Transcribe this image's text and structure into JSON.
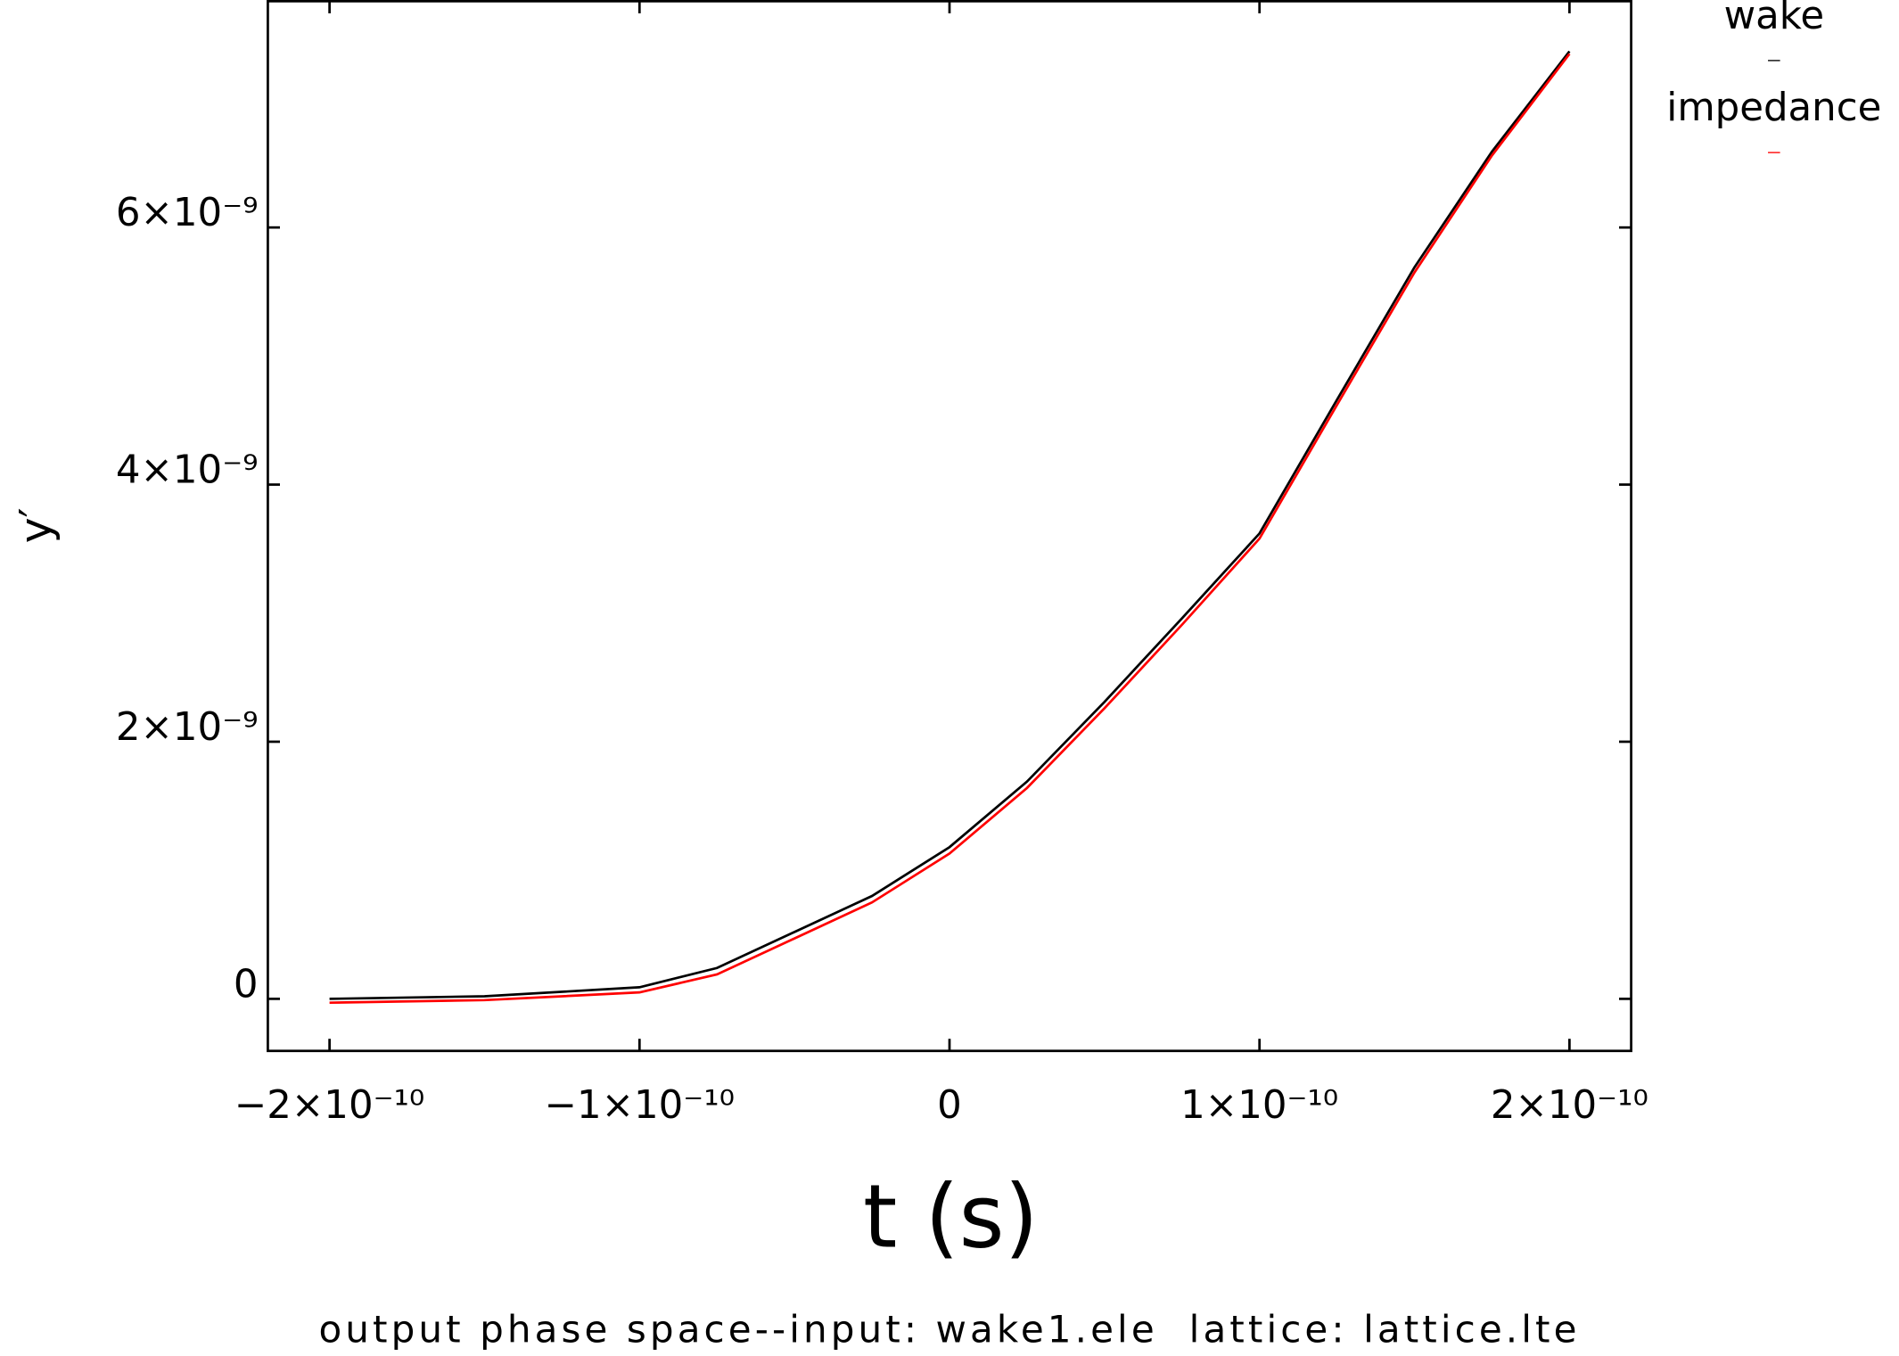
{
  "chart_data": {
    "type": "line",
    "title": "output phase space--input: wake1.ele  lattice: lattice.lte",
    "x_label": "t (s)",
    "y_label": "y′",
    "x": [
      -2e-10,
      -1.5e-10,
      -1e-10,
      -7.5e-11,
      -5e-11,
      -2.5e-11,
      0,
      2.5e-11,
      5e-11,
      7.5e-11,
      1e-10,
      1.25e-10,
      1.5e-10,
      1.75e-10,
      2e-10
    ],
    "series": [
      {
        "name": "wake",
        "color": "#000000",
        "values": [
          0,
          2e-11,
          9e-11,
          2.4e-10,
          5.2e-10,
          8e-10,
          1.18e-09,
          1.69e-09,
          2.31e-09,
          2.96e-09,
          3.62e-09,
          4.66e-09,
          5.69e-09,
          6.59e-09,
          7.37e-09
        ]
      },
      {
        "name": "impedance",
        "color": "#ff0000",
        "values": [
          -3e-11,
          -1e-11,
          5e-11,
          1.9e-10,
          4.7e-10,
          7.5e-10,
          1.13e-09,
          1.64e-09,
          2.26e-09,
          2.91e-09,
          3.58e-09,
          4.62e-09,
          5.65e-09,
          6.56e-09,
          7.35e-09
        ]
      }
    ],
    "xlim": [
      -2.199e-10,
      2.199e-10
    ],
    "xticks": [
      {
        "value": -2e-10,
        "label": "−2×10⁻¹⁰"
      },
      {
        "value": -1e-10,
        "label": "−1×10⁻¹⁰"
      },
      0,
      {
        "value": 1e-10,
        "label": "1×10⁻¹⁰"
      },
      {
        "value": 2e-10,
        "label": "2×10⁻¹⁰"
      }
    ],
    "ylim": [
      -4.05e-10,
      7.76e-09
    ],
    "yticks": [
      0,
      {
        "value": 2e-09,
        "label": "2×10⁻⁹"
      },
      {
        "value": 4e-09,
        "label": "4×10⁻⁹"
      },
      {
        "value": 6e-09,
        "label": "6×10⁻⁹"
      }
    ],
    "grid": false,
    "legend": "outside-top-right"
  }
}
